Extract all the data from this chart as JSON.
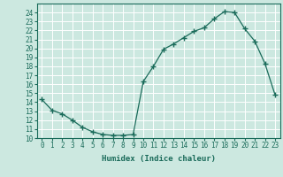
{
  "title": "",
  "xlabel": "Humidex (Indice chaleur)",
  "x": [
    0,
    1,
    2,
    3,
    4,
    5,
    6,
    7,
    8,
    9,
    10,
    11,
    12,
    13,
    14,
    15,
    16,
    17,
    18,
    19,
    20,
    21,
    22,
    23
  ],
  "y": [
    14.3,
    13.1,
    12.7,
    12.0,
    11.2,
    10.7,
    10.4,
    10.3,
    10.3,
    10.4,
    16.3,
    18.0,
    19.9,
    20.5,
    21.2,
    21.9,
    22.3,
    23.3,
    24.1,
    24.0,
    22.2,
    20.8,
    18.3,
    14.8
  ],
  "line_color": "#1a6b5a",
  "marker": "+",
  "marker_size": 4,
  "bg_color": "#cce8e0",
  "grid_color": "#ffffff",
  "ylim": [
    10,
    25
  ],
  "xlim": [
    -0.5,
    23.5
  ],
  "yticks": [
    10,
    11,
    12,
    13,
    14,
    15,
    16,
    17,
    18,
    19,
    20,
    21,
    22,
    23,
    24
  ],
  "xticks": [
    0,
    1,
    2,
    3,
    4,
    5,
    6,
    7,
    8,
    9,
    10,
    11,
    12,
    13,
    14,
    15,
    16,
    17,
    18,
    19,
    20,
    21,
    22,
    23
  ],
  "tick_fontsize": 5.5,
  "label_fontsize": 6.5
}
